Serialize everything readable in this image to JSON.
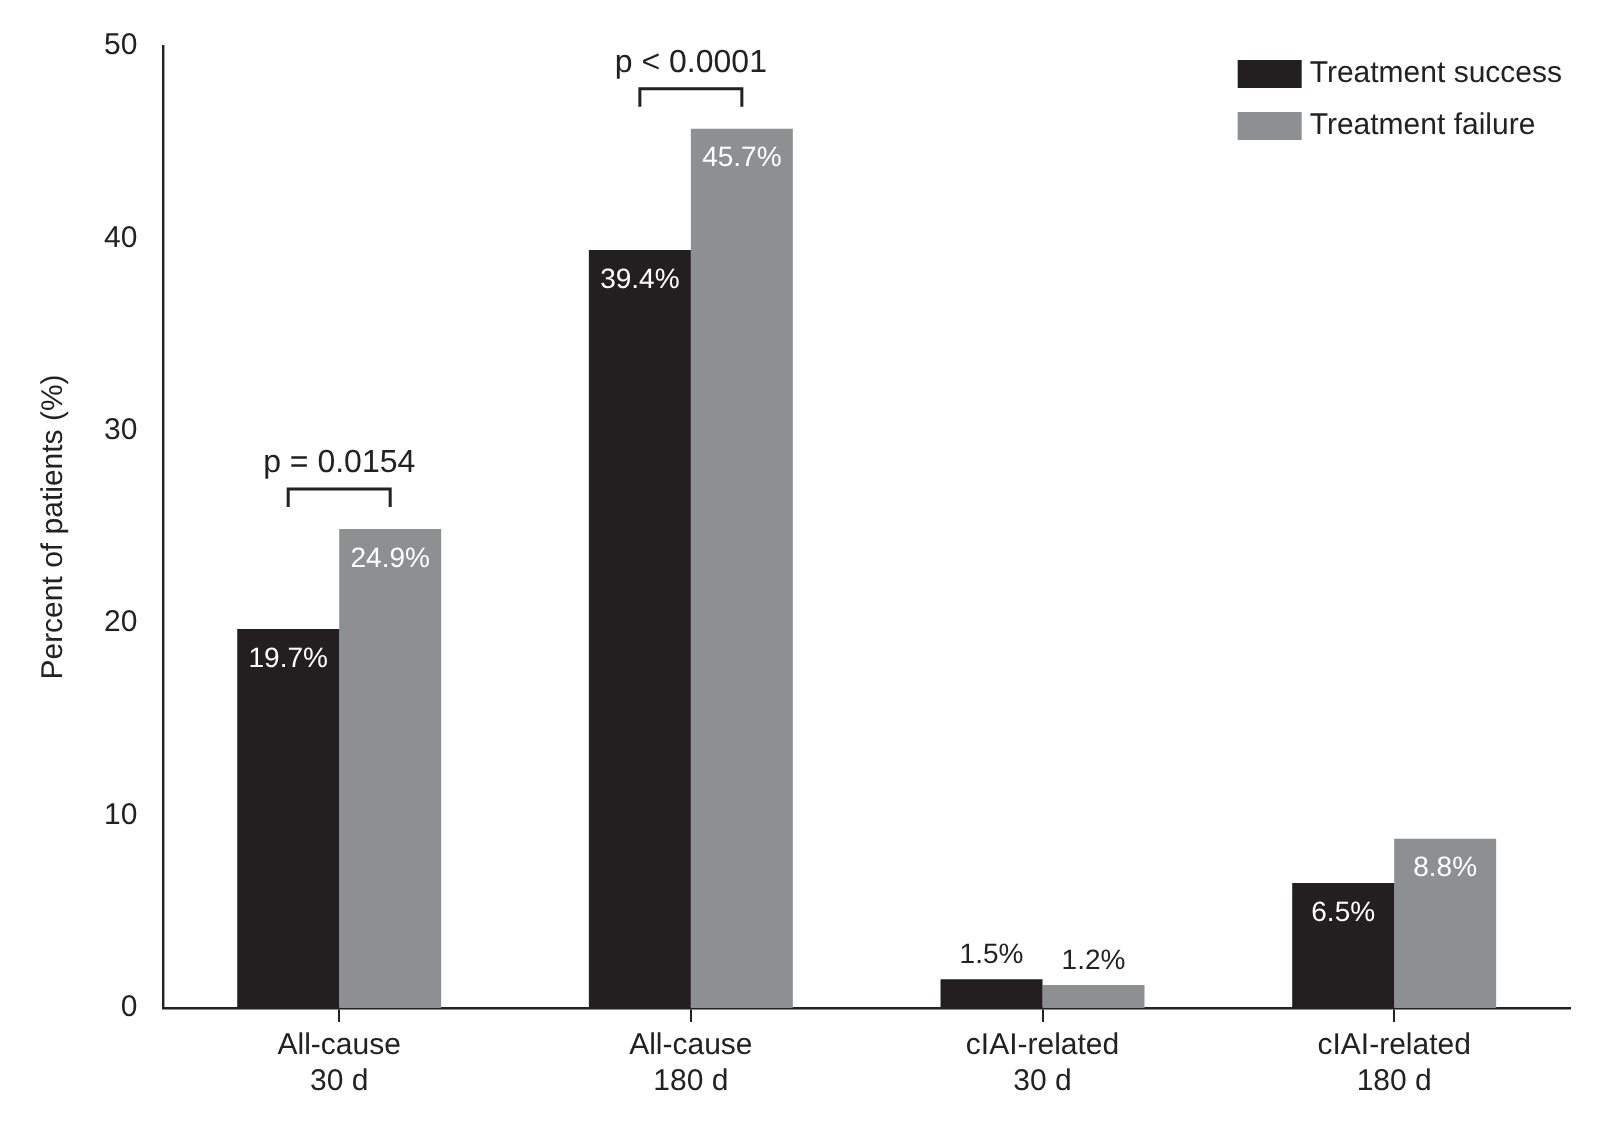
{
  "chart_data": {
    "type": "bar",
    "ylabel": "Percent of patients (%)",
    "categories": [
      "All-cause\n30 d",
      "All-cause\n180 d",
      "cIAI-related\n30 d",
      "cIAI-related\n180 d"
    ],
    "series": [
      {
        "name": "Treatment success",
        "color": "#231f20",
        "values": [
          19.7,
          39.4,
          1.5,
          6.5
        ],
        "value_labels": [
          "19.7%",
          "39.4%",
          "1.5%",
          "6.5%"
        ]
      },
      {
        "name": "Treatment failure",
        "color": "#8e8f91",
        "values": [
          24.9,
          45.7,
          1.2,
          8.8
        ],
        "value_labels": [
          "24.9%",
          "45.7%",
          "1.2%",
          "8.8%"
        ]
      }
    ],
    "ylim": [
      0,
      50
    ],
    "yticks": [
      0,
      10,
      20,
      30,
      40,
      50
    ],
    "grid": false,
    "legend": "top right",
    "annotations": [
      "p = 0.0154",
      "p < 0.0001"
    ]
  }
}
